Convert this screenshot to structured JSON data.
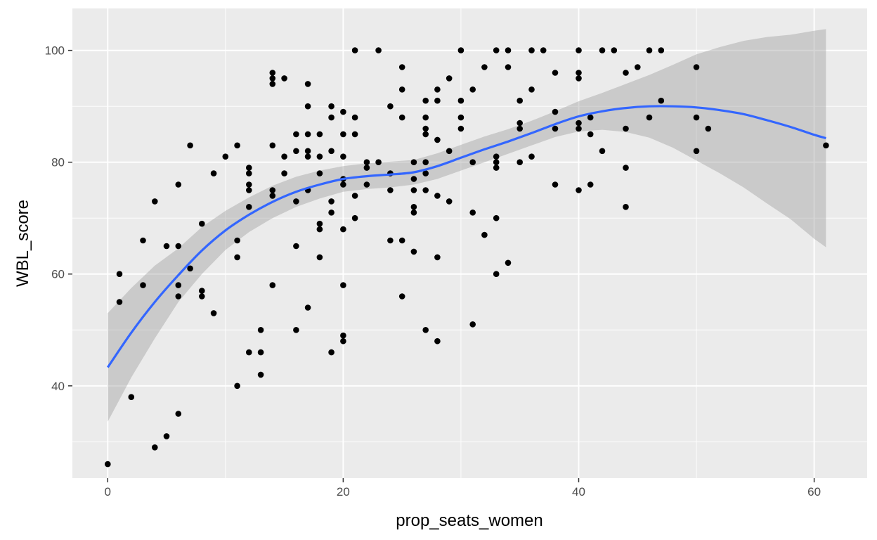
{
  "chart_data": {
    "type": "scatter",
    "title": "",
    "xlabel": "prop_seats_women",
    "ylabel": "WBL_score",
    "xlim": [
      -3,
      64.5
    ],
    "ylim": [
      23.5,
      107.5
    ],
    "x_ticks": [
      0,
      20,
      40,
      60
    ],
    "x_tick_labels": [
      "0",
      "20",
      "40",
      "60"
    ],
    "y_ticks": [
      40,
      60,
      80,
      100
    ],
    "y_tick_labels": [
      "40",
      "60",
      "80",
      "100"
    ],
    "grid": true,
    "panel_background": "#ebebeb",
    "grid_color": "#ffffff",
    "point_color": "#000000",
    "smooth_color": "#3366ff",
    "band_color": "#999999",
    "points": [
      [
        0,
        26
      ],
      [
        1,
        55
      ],
      [
        1,
        60
      ],
      [
        2,
        38
      ],
      [
        3,
        58
      ],
      [
        3,
        66
      ],
      [
        4,
        29
      ],
      [
        4,
        73
      ],
      [
        5,
        31
      ],
      [
        5,
        65
      ],
      [
        6,
        35
      ],
      [
        6,
        56
      ],
      [
        6,
        58
      ],
      [
        6,
        65
      ],
      [
        6,
        76
      ],
      [
        7,
        61
      ],
      [
        7,
        83
      ],
      [
        8,
        56
      ],
      [
        8,
        57
      ],
      [
        8,
        69
      ],
      [
        9,
        53
      ],
      [
        9,
        78
      ],
      [
        10,
        81
      ],
      [
        11,
        40
      ],
      [
        11,
        63
      ],
      [
        11,
        66
      ],
      [
        11,
        83
      ],
      [
        12,
        46
      ],
      [
        12,
        72
      ],
      [
        12,
        75
      ],
      [
        12,
        76
      ],
      [
        12,
        78
      ],
      [
        12,
        79
      ],
      [
        13,
        42
      ],
      [
        13,
        46
      ],
      [
        13,
        50
      ],
      [
        14,
        58
      ],
      [
        14,
        74
      ],
      [
        14,
        75
      ],
      [
        14,
        83
      ],
      [
        14,
        94
      ],
      [
        14,
        95
      ],
      [
        14,
        96
      ],
      [
        15,
        78
      ],
      [
        15,
        81
      ],
      [
        15,
        95
      ],
      [
        16,
        50
      ],
      [
        16,
        65
      ],
      [
        16,
        73
      ],
      [
        16,
        82
      ],
      [
        16,
        85
      ],
      [
        17,
        54
      ],
      [
        17,
        75
      ],
      [
        17,
        81
      ],
      [
        17,
        82
      ],
      [
        17,
        85
      ],
      [
        17,
        90
      ],
      [
        17,
        94
      ],
      [
        18,
        63
      ],
      [
        18,
        68
      ],
      [
        18,
        69
      ],
      [
        18,
        78
      ],
      [
        18,
        81
      ],
      [
        18,
        85
      ],
      [
        19,
        46
      ],
      [
        19,
        71
      ],
      [
        19,
        73
      ],
      [
        19,
        82
      ],
      [
        19,
        88
      ],
      [
        19,
        90
      ],
      [
        20,
        48
      ],
      [
        20,
        49
      ],
      [
        20,
        58
      ],
      [
        20,
        68
      ],
      [
        20,
        76
      ],
      [
        20,
        77
      ],
      [
        20,
        81
      ],
      [
        20,
        85
      ],
      [
        20,
        89
      ],
      [
        21,
        70
      ],
      [
        21,
        74
      ],
      [
        21,
        85
      ],
      [
        21,
        88
      ],
      [
        21,
        100
      ],
      [
        22,
        76
      ],
      [
        22,
        79
      ],
      [
        22,
        80
      ],
      [
        23,
        80
      ],
      [
        23,
        100
      ],
      [
        24,
        66
      ],
      [
        24,
        75
      ],
      [
        24,
        78
      ],
      [
        24,
        90
      ],
      [
        25,
        56
      ],
      [
        25,
        66
      ],
      [
        25,
        88
      ],
      [
        25,
        93
      ],
      [
        25,
        97
      ],
      [
        26,
        64
      ],
      [
        26,
        71
      ],
      [
        26,
        72
      ],
      [
        26,
        75
      ],
      [
        26,
        77
      ],
      [
        26,
        80
      ],
      [
        27,
        50
      ],
      [
        27,
        75
      ],
      [
        27,
        78
      ],
      [
        27,
        80
      ],
      [
        27,
        85
      ],
      [
        27,
        86
      ],
      [
        27,
        88
      ],
      [
        27,
        91
      ],
      [
        28,
        48
      ],
      [
        28,
        63
      ],
      [
        28,
        74
      ],
      [
        28,
        84
      ],
      [
        28,
        91
      ],
      [
        28,
        93
      ],
      [
        29,
        73
      ],
      [
        29,
        82
      ],
      [
        29,
        95
      ],
      [
        30,
        86
      ],
      [
        30,
        88
      ],
      [
        30,
        91
      ],
      [
        30,
        100
      ],
      [
        31,
        51
      ],
      [
        31,
        71
      ],
      [
        31,
        80
      ],
      [
        31,
        93
      ],
      [
        32,
        67
      ],
      [
        32,
        97
      ],
      [
        33,
        60
      ],
      [
        33,
        70
      ],
      [
        33,
        79
      ],
      [
        33,
        80
      ],
      [
        33,
        81
      ],
      [
        33,
        100
      ],
      [
        34,
        62
      ],
      [
        34,
        97
      ],
      [
        34,
        100
      ],
      [
        35,
        80
      ],
      [
        35,
        86
      ],
      [
        35,
        87
      ],
      [
        35,
        91
      ],
      [
        36,
        81
      ],
      [
        36,
        93
      ],
      [
        36,
        100
      ],
      [
        37,
        100
      ],
      [
        38,
        76
      ],
      [
        38,
        86
      ],
      [
        38,
        89
      ],
      [
        38,
        96
      ],
      [
        40,
        75
      ],
      [
        40,
        86
      ],
      [
        40,
        87
      ],
      [
        40,
        95
      ],
      [
        40,
        96
      ],
      [
        40,
        100
      ],
      [
        41,
        76
      ],
      [
        41,
        85
      ],
      [
        41,
        88
      ],
      [
        42,
        82
      ],
      [
        42,
        100
      ],
      [
        43,
        100
      ],
      [
        44,
        72
      ],
      [
        44,
        79
      ],
      [
        44,
        86
      ],
      [
        44,
        96
      ],
      [
        45,
        97
      ],
      [
        46,
        88
      ],
      [
        46,
        100
      ],
      [
        47,
        91
      ],
      [
        47,
        100
      ],
      [
        50,
        82
      ],
      [
        50,
        88
      ],
      [
        50,
        97
      ],
      [
        51,
        86
      ],
      [
        61,
        83
      ]
    ],
    "smooth": {
      "x": [
        0,
        2,
        4,
        6,
        8,
        10,
        12,
        14,
        16,
        18,
        20,
        22,
        24,
        26,
        28,
        30,
        32,
        34,
        36,
        38,
        40,
        42,
        44,
        46,
        48,
        50,
        52,
        54,
        56,
        58,
        60,
        61
      ],
      "y": [
        43.3,
        49.5,
        55.0,
        59.8,
        64.2,
        67.8,
        70.6,
        72.9,
        74.7,
        76.0,
        77.0,
        77.5,
        77.8,
        78.2,
        79.3,
        80.8,
        82.3,
        83.7,
        85.2,
        86.8,
        88.2,
        89.1,
        89.7,
        90.0,
        90.0,
        89.8,
        89.3,
        88.6,
        87.5,
        86.3,
        84.9,
        84.3
      ],
      "lower": [
        33.6,
        41.5,
        48.5,
        55.0,
        60.0,
        64.3,
        67.5,
        70.0,
        72.0,
        73.5,
        74.7,
        75.2,
        75.5,
        76.0,
        77.0,
        78.5,
        80.0,
        81.5,
        83.0,
        84.5,
        85.5,
        85.8,
        85.4,
        84.4,
        82.6,
        80.3,
        78.0,
        75.5,
        72.6,
        69.8,
        66.3,
        64.8
      ],
      "upper": [
        53.0,
        57.5,
        61.5,
        64.6,
        68.4,
        71.3,
        73.7,
        75.8,
        77.4,
        78.5,
        79.3,
        79.8,
        80.1,
        80.4,
        81.6,
        83.1,
        84.6,
        85.9,
        87.4,
        89.1,
        90.9,
        92.4,
        94.0,
        95.6,
        97.4,
        99.3,
        100.6,
        101.7,
        102.4,
        102.8,
        103.5,
        103.8
      ]
    }
  }
}
